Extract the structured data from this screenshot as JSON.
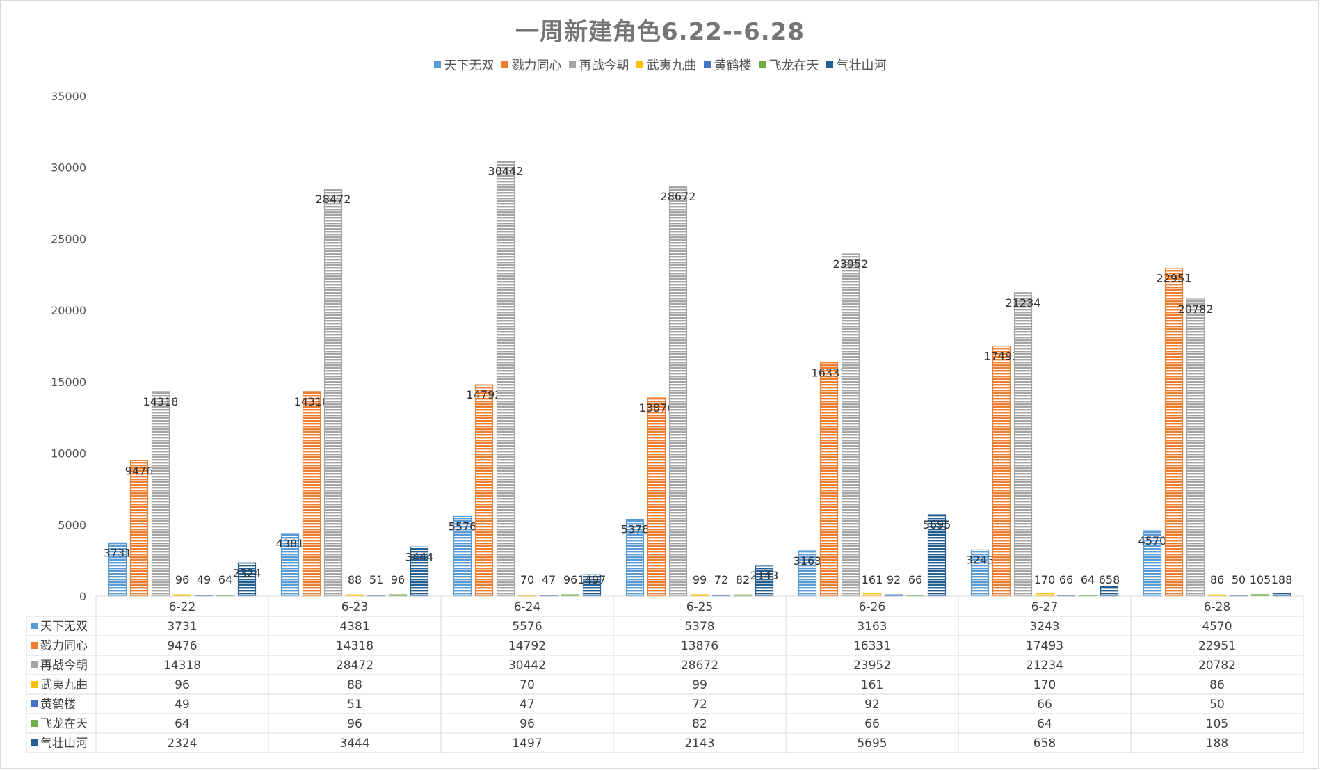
{
  "chart_data": {
    "type": "bar",
    "title": "一周新建角色6.22--6.28",
    "categories": [
      "6-22",
      "6-23",
      "6-24",
      "6-25",
      "6-26",
      "6-27",
      "6-28"
    ],
    "ylim": [
      0,
      35000
    ],
    "y_ticks": [
      0,
      5000,
      10000,
      15000,
      20000,
      25000,
      30000,
      35000
    ],
    "legend_position": "top",
    "grid": false,
    "data_table": true,
    "series": [
      {
        "name": "天下无双",
        "color": "#5b9bd5",
        "values": [
          3731,
          4381,
          5576,
          5378,
          3163,
          3243,
          4570
        ]
      },
      {
        "name": "戮力同心",
        "color": "#ed7d31",
        "values": [
          9476,
          14318,
          14792,
          13876,
          16331,
          17493,
          22951
        ]
      },
      {
        "name": "再战今朝",
        "color": "#a5a5a5",
        "values": [
          14318,
          28472,
          30442,
          28672,
          23952,
          21234,
          20782
        ]
      },
      {
        "name": "武夷九曲",
        "color": "#ffc000",
        "values": [
          96,
          88,
          70,
          99,
          161,
          170,
          86
        ]
      },
      {
        "name": "黄鹤楼",
        "color": "#4472c4",
        "values": [
          49,
          51,
          47,
          72,
          92,
          66,
          50
        ]
      },
      {
        "name": "飞龙在天",
        "color": "#70ad47",
        "values": [
          64,
          96,
          96,
          82,
          66,
          64,
          105
        ]
      },
      {
        "name": "气壮山河",
        "color": "#255e91",
        "values": [
          2324,
          3444,
          1497,
          2143,
          5695,
          658,
          188
        ]
      }
    ]
  }
}
